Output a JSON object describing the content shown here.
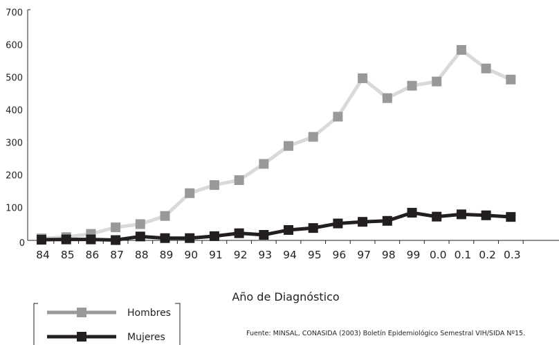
{
  "chart_data": {
    "type": "line",
    "title": "",
    "xlabel": "Año de Diagnóstico",
    "ylabel": "",
    "x": [
      "84",
      "85",
      "86",
      "87",
      "88",
      "89",
      "90",
      "91",
      "92",
      "93",
      "94",
      "95",
      "96",
      "97",
      "98",
      "99",
      "0.0",
      "0.1",
      "0.2",
      "0.3"
    ],
    "yticks": [
      "0",
      "100",
      "200",
      "300",
      "400",
      "500",
      "600",
      "700"
    ],
    "ylim": [
      0,
      700
    ],
    "grid": false,
    "legend_position": "bottom-left",
    "series": [
      {
        "name": "Hombres",
        "color": "#999999",
        "line_color": "#d9d9d9",
        "values": [
          6,
          10,
          20,
          40,
          50,
          75,
          145,
          170,
          185,
          235,
          290,
          318,
          380,
          498,
          437,
          475,
          488,
          585,
          528,
          494
        ]
      },
      {
        "name": "Mujeres",
        "color": "#231f20",
        "line_color": "#231f20",
        "values": [
          2,
          3,
          3,
          1,
          12,
          7,
          7,
          13,
          22,
          17,
          32,
          38,
          52,
          57,
          60,
          85,
          73,
          80,
          77,
          72
        ]
      }
    ],
    "source_note": "Fuente: MINSAL, CONASIDA (2003) Boletín Epidemiológico Semestral VIH/SIDA Nº15."
  }
}
